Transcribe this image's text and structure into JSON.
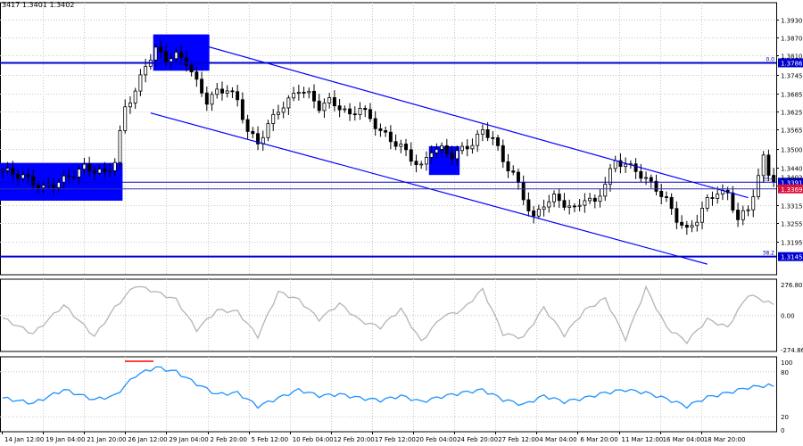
{
  "header": {
    "ohlc_text": "3417 1.3401 1.3402"
  },
  "colors": {
    "candle": "#000000",
    "channel": "#0000ff",
    "level_line": "#0000cd",
    "fib_line": "#00008b",
    "cci_line": "#b4b4b4",
    "rsi_line": "#1e90ff",
    "grid": "#c8c8c8",
    "red_mark": "#ff0000"
  },
  "chart_data": [
    {
      "type": "candlestick",
      "pair": "GBP/USD",
      "ylim": [
        1.3085,
        1.3985
      ],
      "y_ticks": [
        "1.3930",
        "1.3870",
        "1.3810",
        "1.3745",
        "1.3685",
        "1.3625",
        "1.3565",
        "1.3500",
        "1.3440",
        "1.3380",
        "1.3315",
        "1.3255",
        "1.3195"
      ],
      "x_labels": [
        "14 Jan 12:00",
        "19 Jan 04:00",
        "21 Jan 20:00",
        "26 Jan 12:00",
        "29 Jan 04:00",
        "2 Feb 20:00",
        "5 Feb 12:00",
        "10 Feb 04:00",
        "12 Feb 20:00",
        "17 Feb 12:00",
        "20 Feb 04:00",
        "24 Feb 20:00",
        "27 Feb 12:00",
        "4 Mar 04:00",
        "6 Mar 20:00",
        "11 Mar 12:00",
        "16 Mar 04:00",
        "18 Mar 20:00"
      ],
      "close_path": [
        [
          0,
          1.343
        ],
        [
          4,
          1.341
        ],
        [
          8,
          1.337
        ],
        [
          12,
          1.34
        ],
        [
          16,
          1.344
        ],
        [
          20,
          1.342
        ],
        [
          22,
          1.346
        ],
        [
          24,
          1.364
        ],
        [
          26,
          1.369
        ],
        [
          28,
          1.378
        ],
        [
          30,
          1.383
        ],
        [
          32,
          1.38
        ],
        [
          34,
          1.381
        ],
        [
          36,
          1.379
        ],
        [
          38,
          1.372
        ],
        [
          40,
          1.366
        ],
        [
          42,
          1.369
        ],
        [
          44,
          1.37
        ],
        [
          46,
          1.366
        ],
        [
          48,
          1.356
        ],
        [
          50,
          1.352
        ],
        [
          52,
          1.358
        ],
        [
          54,
          1.363
        ],
        [
          56,
          1.366
        ],
        [
          58,
          1.37
        ],
        [
          60,
          1.368
        ],
        [
          62,
          1.364
        ],
        [
          64,
          1.366
        ],
        [
          66,
          1.364
        ],
        [
          68,
          1.361
        ],
        [
          70,
          1.364
        ],
        [
          72,
          1.36
        ],
        [
          74,
          1.356
        ],
        [
          76,
          1.353
        ],
        [
          78,
          1.351
        ],
        [
          80,
          1.347
        ],
        [
          82,
          1.344
        ],
        [
          84,
          1.35
        ],
        [
          86,
          1.35
        ],
        [
          88,
          1.348
        ],
        [
          90,
          1.35
        ],
        [
          92,
          1.352
        ],
        [
          94,
          1.356
        ],
        [
          96,
          1.354
        ],
        [
          98,
          1.346
        ],
        [
          100,
          1.342
        ],
        [
          102,
          1.334
        ],
        [
          104,
          1.327
        ],
        [
          106,
          1.332
        ],
        [
          108,
          1.334
        ],
        [
          110,
          1.332
        ],
        [
          112,
          1.33
        ],
        [
          114,
          1.334
        ],
        [
          116,
          1.332
        ],
        [
          118,
          1.339
        ],
        [
          120,
          1.346
        ],
        [
          122,
          1.345
        ],
        [
          124,
          1.343
        ],
        [
          126,
          1.34
        ],
        [
          128,
          1.337
        ],
        [
          130,
          1.333
        ],
        [
          132,
          1.327
        ],
        [
          134,
          1.323
        ],
        [
          136,
          1.327
        ],
        [
          138,
          1.333
        ],
        [
          140,
          1.336
        ],
        [
          142,
          1.335
        ],
        [
          144,
          1.327
        ],
        [
          146,
          1.33
        ],
        [
          148,
          1.341
        ],
        [
          149,
          1.347
        ],
        [
          150,
          1.342
        ],
        [
          151,
          1.3402
        ]
      ],
      "horizontal_levels": [
        {
          "price": 1.3786,
          "label": "1.3786",
          "fib": "0.0"
        },
        {
          "price": 1.3391,
          "label": "1.3391",
          "fib": "23.6"
        },
        {
          "price": 1.3369,
          "label": "1.3369",
          "fib": ""
        },
        {
          "price": 1.3145,
          "label": "1.3145",
          "fib": "38.2"
        }
      ],
      "current_price": {
        "price": 1.3402,
        "label": "1.3402"
      },
      "channel": {
        "upper": [
          [
            38,
            1.385
          ],
          [
            146,
            1.334
          ]
        ],
        "lower": [
          [
            29,
            1.362
          ],
          [
            138,
            1.312
          ]
        ]
      },
      "zones": [
        {
          "start": 0,
          "end": 23,
          "high": 1.3455,
          "low": 1.333
        },
        {
          "start": 30,
          "end": 40,
          "high": 1.388,
          "low": 1.376
        },
        {
          "start": 84,
          "end": 89,
          "high": 1.351,
          "low": 1.3415
        }
      ]
    },
    {
      "type": "line",
      "indicator": "CCI",
      "y_ticks": [
        "276.8074",
        "0.00",
        "-274.865"
      ],
      "ylim": [
        -274.865,
        276.8074
      ],
      "x": [
        0,
        6,
        12,
        18,
        22,
        26,
        30,
        34,
        38,
        42,
        46,
        50,
        54,
        58,
        62,
        66,
        70,
        74,
        78,
        82,
        86,
        90,
        94,
        98,
        102,
        106,
        110,
        114,
        118,
        122,
        126,
        130,
        134,
        138,
        142,
        146,
        150,
        151
      ],
      "values": [
        -20,
        -140,
        80,
        -160,
        60,
        230,
        180,
        120,
        -110,
        40,
        30,
        -160,
        180,
        120,
        -30,
        90,
        -40,
        -90,
        50,
        -200,
        -10,
        40,
        200,
        -140,
        -170,
        60,
        -150,
        40,
        130,
        -180,
        210,
        -90,
        -200,
        -30,
        -90,
        160,
        100,
        80
      ]
    },
    {
      "type": "line",
      "indicator": "RSI",
      "y_ticks": [
        "100",
        "80",
        "20",
        "0"
      ],
      "ylim": [
        0,
        100
      ],
      "x": [
        0,
        6,
        12,
        18,
        22,
        26,
        30,
        34,
        38,
        42,
        46,
        50,
        54,
        58,
        62,
        66,
        70,
        74,
        78,
        82,
        86,
        90,
        94,
        98,
        102,
        106,
        110,
        114,
        118,
        122,
        126,
        130,
        134,
        138,
        142,
        146,
        150,
        151
      ],
      "values": [
        45,
        38,
        56,
        43,
        48,
        75,
        86,
        80,
        64,
        50,
        52,
        34,
        45,
        56,
        48,
        50,
        45,
        42,
        48,
        40,
        47,
        52,
        56,
        43,
        36,
        48,
        40,
        45,
        52,
        56,
        52,
        44,
        34,
        46,
        52,
        59,
        62,
        60
      ]
    }
  ]
}
